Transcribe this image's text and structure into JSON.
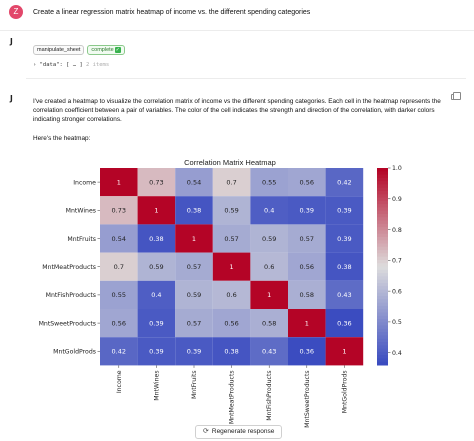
{
  "user": {
    "avatar": "Z",
    "message": "Create a linear regression matrix heatmap of income vs. the different spending categories"
  },
  "assistant": {
    "avatar": "J"
  },
  "tool_call": {
    "name": "manipulate_sheet",
    "status": "complete",
    "status_icon": "check-icon",
    "json_key": "\"data\"",
    "json_value": "[ … ]",
    "json_count": "2 items"
  },
  "response": {
    "paragraph": "I've created a heatmap to visualize the correlation matrix of income vs the different spending categories. Each cell in the heatmap represents the correlation coefficient between a pair of variables. The color of the cell indicates the strength and direction of the correlation, with darker colors indicating stronger correlations.",
    "heres": "Here's the heatmap:"
  },
  "chart_data": {
    "type": "heatmap",
    "title": "Correlation Matrix Heatmap",
    "labels": [
      "Income",
      "MntWines",
      "MntFruits",
      "MntMeatProducts",
      "MntFishProducts",
      "MntSweetProducts",
      "MntGoldProds"
    ],
    "matrix": [
      [
        1,
        0.73,
        0.54,
        0.7,
        0.55,
        0.56,
        0.42
      ],
      [
        0.73,
        1,
        0.38,
        0.59,
        0.4,
        0.39,
        0.39
      ],
      [
        0.54,
        0.38,
        1,
        0.57,
        0.59,
        0.57,
        0.39
      ],
      [
        0.7,
        0.59,
        0.57,
        1,
        0.6,
        0.56,
        0.38
      ],
      [
        0.55,
        0.4,
        0.59,
        0.6,
        1,
        0.58,
        0.43
      ],
      [
        0.56,
        0.39,
        0.57,
        0.56,
        0.58,
        1,
        0.36
      ],
      [
        0.42,
        0.39,
        0.39,
        0.38,
        0.43,
        0.36,
        1
      ]
    ],
    "colorbar": {
      "min": 0.36,
      "max": 1.0,
      "ticks": [
        1.0,
        0.9,
        0.8,
        0.7,
        0.6,
        0.5,
        0.4
      ]
    },
    "colormap": {
      "low": "#3b4cc0",
      "mid": "#dddcdc",
      "high": "#b40426"
    }
  },
  "actions": {
    "regenerate": "Regenerate response",
    "regenerate_icon": "refresh-icon",
    "copy_icon": "copy-icon"
  }
}
